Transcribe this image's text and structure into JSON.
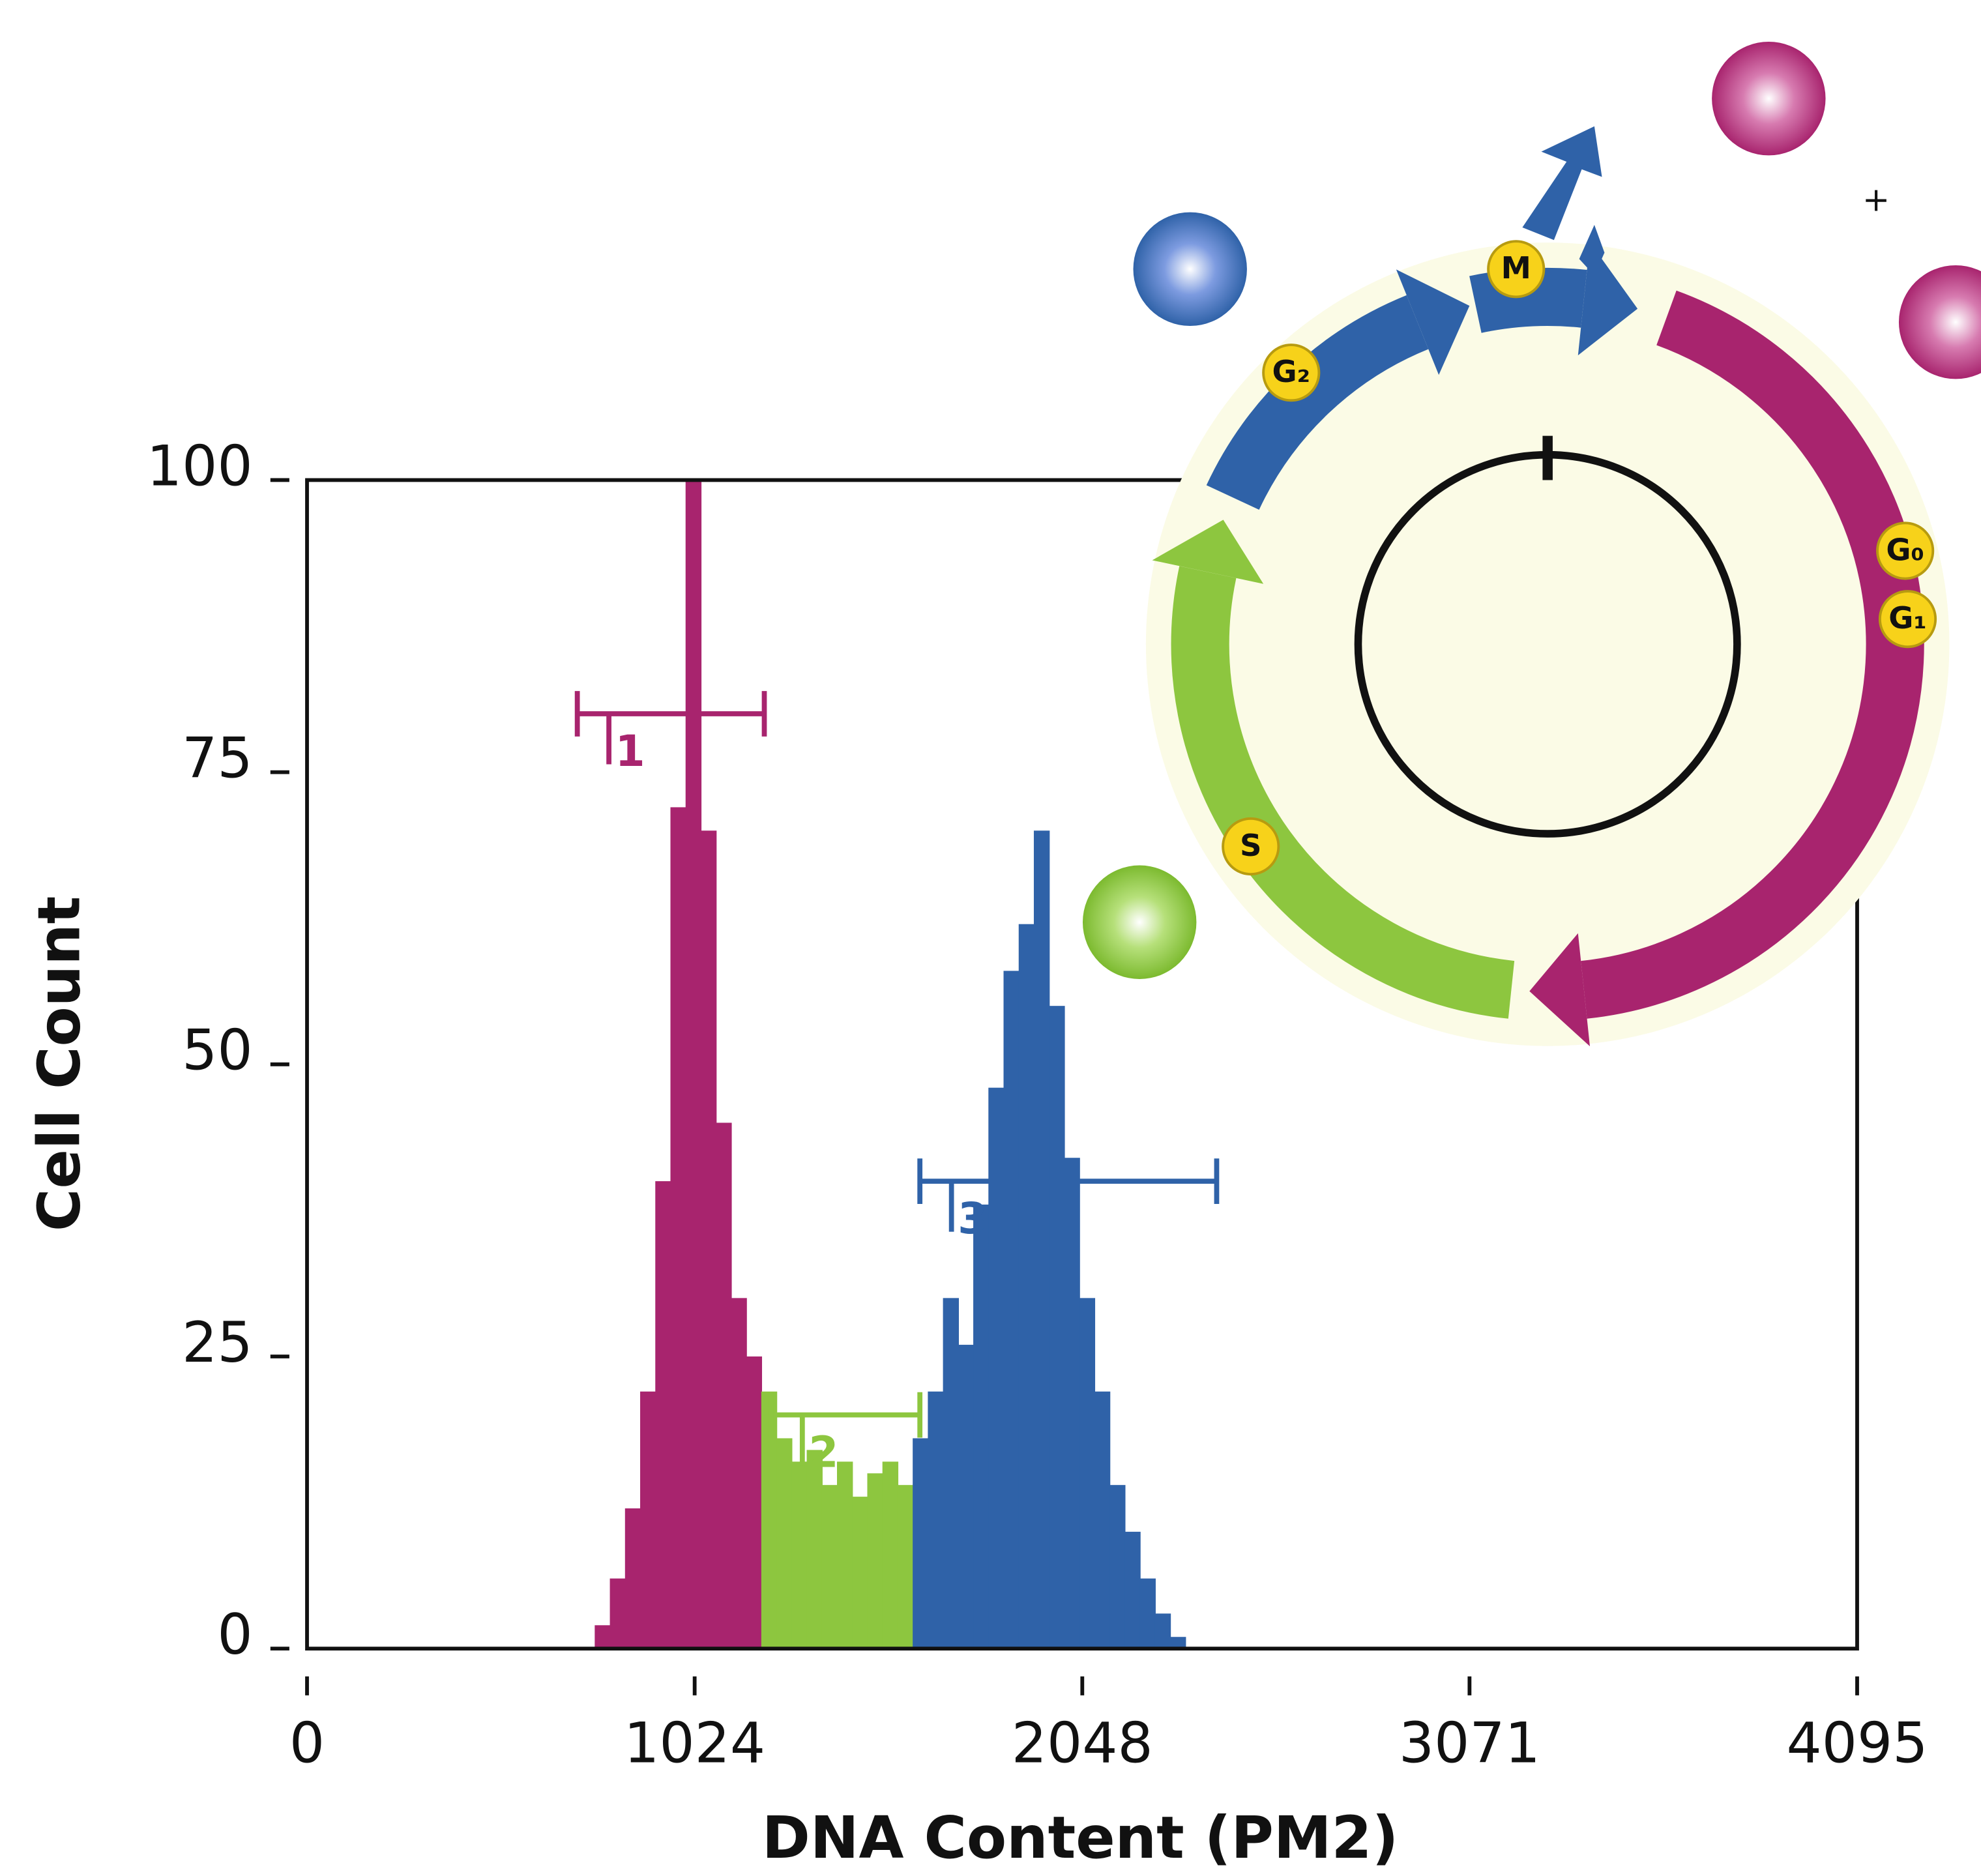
{
  "chart_data": {
    "type": "histogram",
    "xlabel": "DNA Content (PM2)",
    "ylabel": "Cell Count",
    "xlim": [
      0,
      4095
    ],
    "ylim": [
      0,
      100
    ],
    "xticks": [
      0,
      1024,
      2048,
      3071,
      4095
    ],
    "yticks": [
      0,
      25,
      50,
      75,
      100
    ],
    "series": [
      {
        "color": "#a8246e",
        "bins": [
          760,
          800,
          840,
          880,
          920,
          960,
          1000,
          1040,
          1080,
          1120,
          1160,
          1200
        ],
        "values": [
          2,
          6,
          12,
          22,
          40,
          72,
          100,
          70,
          45,
          30,
          25
        ]
      },
      {
        "color": "#8dc63f",
        "bins": [
          1200,
          1240,
          1280,
          1320,
          1360,
          1400,
          1440,
          1480,
          1520,
          1560,
          1600
        ],
        "values": [
          22,
          18,
          16,
          17,
          14,
          16,
          13,
          15,
          16,
          14
        ]
      },
      {
        "color": "#2f62a8",
        "bins": [
          1600,
          1640,
          1680,
          1720,
          1760,
          1800,
          1840,
          1880,
          1920,
          1960,
          2000,
          2040,
          2080,
          2120,
          2160,
          2200,
          2240,
          2280,
          2320
        ],
        "values": [
          18,
          22,
          30,
          26,
          38,
          48,
          58,
          62,
          70,
          55,
          42,
          30,
          22,
          14,
          10,
          6,
          3,
          1
        ]
      }
    ],
    "gates": [
      {
        "label": "1",
        "range": [
          714,
          1208
        ],
        "y": 80,
        "color": "#a8246e"
      },
      {
        "label": "2",
        "range": [
          1225,
          1619
        ],
        "y": 20,
        "color": "#8dc63f"
      },
      {
        "label": "3",
        "range": [
          1619,
          2403
        ],
        "y": 40,
        "color": "#2f62a8"
      }
    ]
  },
  "diagram": {
    "phases": {
      "m": "M",
      "g2": "G₂",
      "g0": "G₀",
      "g1": "G₁",
      "s": "S"
    },
    "plus": "+"
  }
}
